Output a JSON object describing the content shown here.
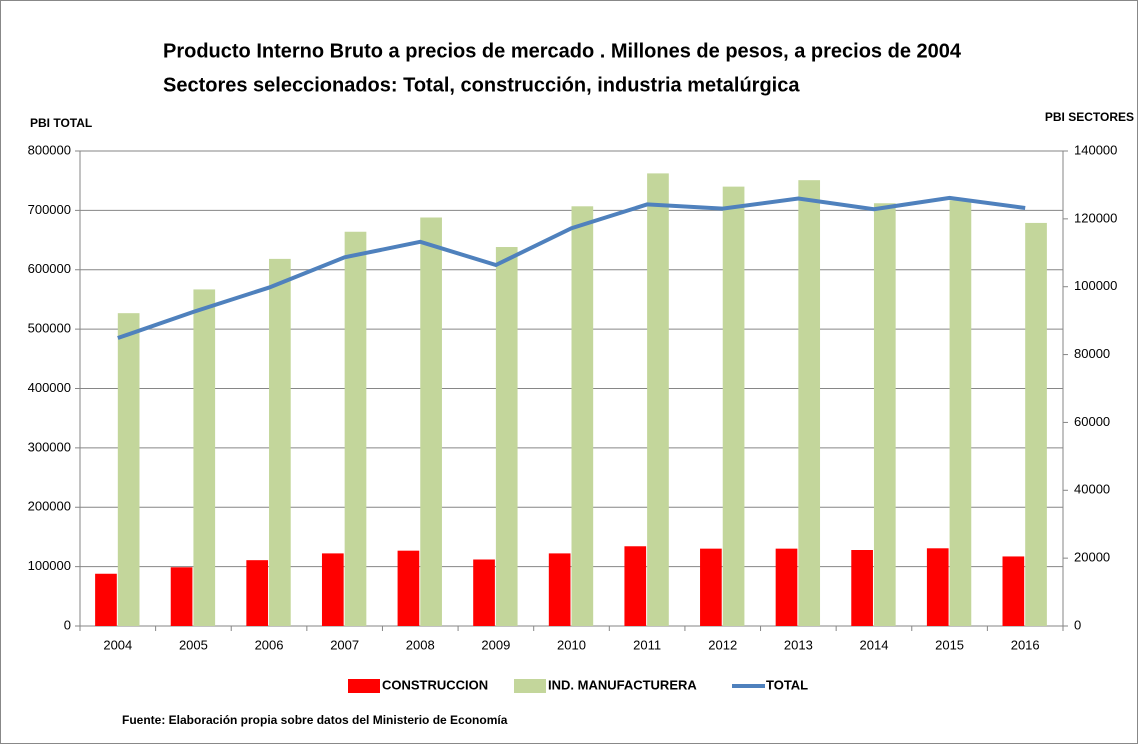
{
  "chart_data": {
    "type": "bar-line",
    "title": "Producto Interno Bruto a precios de mercado . Millones de pesos, a precios de 2004",
    "subtitle": "Sectores seleccionados: Total, construcción, industria metalúrgica",
    "y_label": "PBI TOTAL",
    "y2_label": "PBI SECTORES",
    "source": "Fuente: Elaboración propia sobre datos del Ministerio de Economía",
    "categories": [
      "2004",
      "2005",
      "2006",
      "2007",
      "2008",
      "2009",
      "2010",
      "2011",
      "2012",
      "2013",
      "2014",
      "2015",
      "2016"
    ],
    "series": [
      {
        "name": "CONSTRUCCION",
        "color": "#ff0000",
        "kind": "bar",
        "axis": "y2",
        "values": [
          15400,
          17300,
          19400,
          21400,
          22200,
          19600,
          21400,
          23500,
          22800,
          22800,
          22400,
          22900,
          20500
        ]
      },
      {
        "name": "IND. MANUFACTURERA",
        "color": "#c3d69b",
        "kind": "bar",
        "axis": "y2",
        "values": [
          92200,
          99200,
          108200,
          116200,
          120400,
          111700,
          123700,
          133400,
          129500,
          131400,
          124600,
          125500,
          118800
        ]
      },
      {
        "name": "TOTAL",
        "color": "#4f81bd",
        "kind": "line",
        "axis": "y",
        "values": [
          485000,
          529000,
          570000,
          621000,
          647000,
          608000,
          670000,
          710000,
          703000,
          720000,
          702000,
          721000,
          704000
        ]
      }
    ],
    "ylim": [
      0,
      800000
    ],
    "yticks": [
      0,
      100000,
      200000,
      300000,
      400000,
      500000,
      600000,
      700000,
      800000
    ],
    "y2lim": [
      0,
      140000
    ],
    "y2ticks": [
      0,
      20000,
      40000,
      60000,
      80000,
      100000,
      120000,
      140000
    ],
    "grid": true,
    "legend": "bottom"
  }
}
